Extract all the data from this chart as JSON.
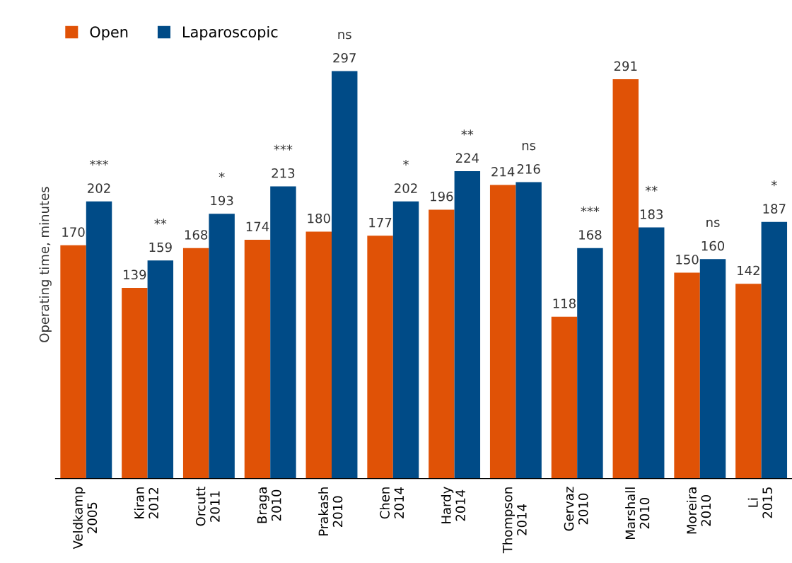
{
  "chart_data": {
    "type": "bar",
    "ylabel": "Operating time, minutes",
    "categories": [
      "Veldkamp\n2005",
      "Kiran\n2012",
      "Orcutt\n2011",
      "Braga\n2010",
      "Prakash\n2010",
      "Chen\n2014",
      "Hardy\n2014",
      "Thompson\n2014",
      "Gervaz\n2010",
      "Marshall\n2010",
      "Moreira\n2010",
      "Li\n2015"
    ],
    "series": [
      {
        "name": "Open",
        "color": "#e05206",
        "values": [
          170,
          139,
          168,
          174,
          180,
          177,
          196,
          214,
          118,
          291,
          150,
          142
        ]
      },
      {
        "name": "Laparoscopic",
        "color": "#004b87",
        "values": [
          202,
          159,
          193,
          213,
          297,
          202,
          224,
          216,
          168,
          183,
          160,
          187
        ]
      }
    ],
    "data_labels": true,
    "legend": "top left",
    "grid": false,
    "annotations": [
      {
        "text": "***",
        "x": "Veldkamp\n2005",
        "y": 202
      },
      {
        "text": "**",
        "x": "Kiran\n2012",
        "y": 159
      },
      {
        "text": "*",
        "x": "Orcutt\n2011",
        "y": 193
      },
      {
        "text": "***",
        "x": "Braga\n2010",
        "y": 213
      },
      {
        "text": "ns",
        "x": "Prakash\n2010",
        "y": 297
      },
      {
        "text": "*",
        "x": "Chen\n2014",
        "y": 202
      },
      {
        "text": "**",
        "x": "Hardy\n2014",
        "y": 224
      },
      {
        "text": "ns",
        "x": "Thompson\n2014",
        "y": 216
      },
      {
        "text": "***",
        "x": "Gervaz\n2010",
        "y": 168
      },
      {
        "text": "**",
        "x": "Marshall\n2010",
        "y": 183
      },
      {
        "text": "ns",
        "x": "Moreira\n2010",
        "y": 160
      },
      {
        "text": "*",
        "x": "Li\n2015",
        "y": 187
      }
    ]
  }
}
